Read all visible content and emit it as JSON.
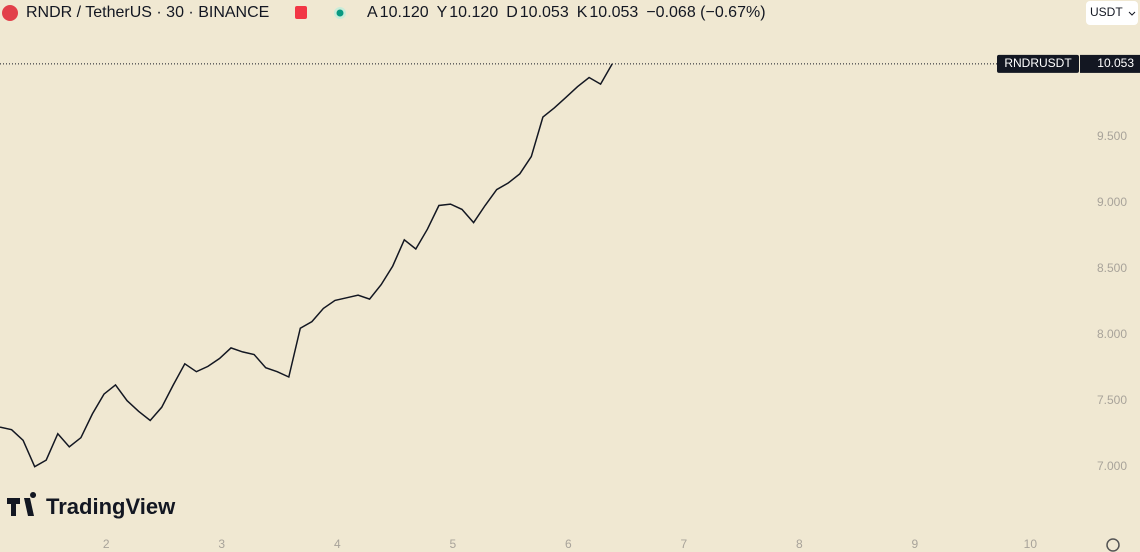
{
  "chart_data": {
    "type": "line",
    "title": "RNDR / TetherUS · 30 · BINANCE",
    "ohlc": [
      {
        "key": "A",
        "value": "10.120"
      },
      {
        "key": "Y",
        "value": "10.120"
      },
      {
        "key": "D",
        "value": "10.053"
      },
      {
        "key": "K",
        "value": "10.053"
      }
    ],
    "change": "−0.068 (−0.67%)",
    "currency": "USDT",
    "brand": "TradingView",
    "price_label": {
      "symbol": "RNDRUSDT",
      "value": 10.053,
      "label": "10.053"
    },
    "color": "#131722",
    "x": [
      1.08,
      1.18,
      1.28,
      1.38,
      1.48,
      1.58,
      1.68,
      1.78,
      1.88,
      1.98,
      2.08,
      2.18,
      2.28,
      2.38,
      2.48,
      2.58,
      2.68,
      2.78,
      2.88,
      2.98,
      3.08,
      3.18,
      3.28,
      3.38,
      3.48,
      3.58,
      3.68,
      3.78,
      3.88,
      3.98,
      4.08,
      4.18,
      4.28,
      4.38,
      4.48,
      4.58,
      4.68,
      4.78,
      4.88,
      4.98,
      5.08,
      5.18,
      5.28,
      5.38,
      5.48,
      5.58,
      5.68,
      5.78,
      5.88,
      5.98,
      6.08,
      6.18,
      6.28,
      6.38
    ],
    "values": [
      7.3,
      7.28,
      7.2,
      7.0,
      7.05,
      7.25,
      7.15,
      7.22,
      7.4,
      7.55,
      7.62,
      7.5,
      7.42,
      7.35,
      7.45,
      7.62,
      7.78,
      7.72,
      7.76,
      7.82,
      7.9,
      7.87,
      7.85,
      7.75,
      7.72,
      7.68,
      8.05,
      8.1,
      8.2,
      8.26,
      8.28,
      8.3,
      8.27,
      8.38,
      8.52,
      8.72,
      8.65,
      8.8,
      8.98,
      8.99,
      8.95,
      8.85,
      8.98,
      9.1,
      9.15,
      9.22,
      9.35,
      9.65,
      9.72,
      9.8,
      9.88,
      9.95,
      9.9,
      10.053
    ],
    "xlim": [
      1.08,
      10.43
    ],
    "xticks": [
      2,
      3,
      4,
      5,
      6,
      7,
      8,
      9,
      10
    ],
    "ylim": [
      6.52,
      10.31
    ],
    "yticks": [
      {
        "value": 7,
        "label": "7.000"
      },
      {
        "value": 7.5,
        "label": "7.500"
      },
      {
        "value": 8,
        "label": "8.000"
      },
      {
        "value": 8.5,
        "label": "8.500"
      },
      {
        "value": 9,
        "label": "9.000"
      },
      {
        "value": 9.5,
        "label": "9.500"
      }
    ]
  }
}
